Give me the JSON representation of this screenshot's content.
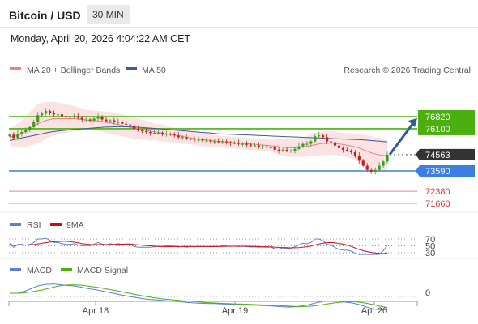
{
  "header": {
    "symbol": "Bitcoin / USD",
    "interval": "30 MIN",
    "datetime": "Monday, April 20, 2026 4:04:22 AM CET"
  },
  "legend": {
    "ma20_label": "MA 20 + Bollinger Bands",
    "ma50_label": "MA 50",
    "copyright": "Research © 2026 Trading Central",
    "ma20_color": "#f08080",
    "ma50_color": "#3d5a99"
  },
  "levels": {
    "resistance": [
      {
        "value": "76820",
        "color": "#4caf10"
      },
      {
        "value": "76100",
        "color": "#4caf10"
      }
    ],
    "current": {
      "value": "74563",
      "color": "#333333"
    },
    "pivot": {
      "value": "73590",
      "color": "#3d7fe0"
    },
    "support": [
      {
        "value": "72380",
        "color": "#e0303a"
      },
      {
        "value": "71660",
        "color": "#e0303a"
      }
    ]
  },
  "rsi": {
    "label": "RSI",
    "ma_label": "9MA",
    "rsi_color": "#5b7fd8",
    "ma_color": "#d01010",
    "levels": [
      "70",
      "50",
      "30"
    ]
  },
  "macd": {
    "label": "MACD",
    "signal_label": "MACD Signal",
    "macd_color": "#5b7fd8",
    "signal_color": "#4caf10",
    "zero_label": "0"
  },
  "xaxis": {
    "labels": [
      "Apr 18",
      "Apr 19",
      "Apr 20"
    ]
  },
  "chart_data": {
    "type": "candlestick",
    "title": "Bitcoin / USD",
    "interval": "30 MIN",
    "y_range": [
      71300,
      78000
    ],
    "x_labels": [
      "Apr 18",
      "Apr 19",
      "Apr 20"
    ],
    "close": [
      75750,
      75550,
      75800,
      75900,
      76000,
      76200,
      76500,
      76900,
      77000,
      77150,
      77050,
      76950,
      76950,
      76850,
      76800,
      76800,
      76850,
      76750,
      76650,
      76650,
      76600,
      76700,
      76800,
      76650,
      76550,
      76600,
      76500,
      76500,
      76400,
      76350,
      76300,
      76100,
      76000,
      75950,
      75900,
      75850,
      75850,
      75850,
      75800,
      75800,
      75750,
      75700,
      75600,
      75600,
      75500,
      75500,
      75450,
      75450,
      75400,
      75400,
      75350,
      75350,
      75300,
      75350,
      75300,
      75250,
      75250,
      75200,
      75200,
      75150,
      75100,
      75100,
      75050,
      75050,
      75000,
      75000,
      74850,
      74800,
      74850,
      74800,
      74800,
      74900,
      75050,
      75200,
      75200,
      75350,
      75650,
      75700,
      75600,
      75350,
      75300,
      75100,
      74950,
      74850,
      74800,
      74700,
      74500,
      74200,
      73900,
      73650,
      73550,
      73650,
      73900,
      74150,
      74563
    ],
    "ma20": [
      75600,
      75650,
      75700,
      75800,
      75950,
      76100,
      76250,
      76400,
      76500,
      76600,
      76650,
      76700,
      76700,
      76700,
      76700,
      76700,
      76700,
      76680,
      76650,
      76620,
      76600,
      76580,
      76560,
      76520,
      76480,
      76450,
      76400,
      76350,
      76300,
      76250,
      76200,
      76150,
      76100,
      76050,
      76000,
      75950,
      75920,
      75880,
      75840,
      75800,
      75760,
      75720,
      75680,
      75640,
      75600,
      75560,
      75520,
      75490,
      75460,
      75430,
      75400,
      75380,
      75350,
      75330,
      75310,
      75290,
      75270,
      75250,
      75230,
      75210,
      75190,
      75170,
      75150,
      75130,
      75110,
      75090,
      75060,
      75030,
      75000,
      74980,
      74970,
      74970,
      74990,
      75020,
      75050,
      75100,
      75150,
      75200,
      75230,
      75240,
      75240,
      75230,
      75200,
      75160,
      75120,
      75080,
      75020,
      74950,
      74860,
      74760,
      74670,
      74600,
      74550,
      74520,
      74500
    ],
    "ma50": [
      75400,
      75450,
      75500,
      75550,
      75600,
      75650,
      75700,
      75750,
      75800,
      75850,
      75900,
      75930,
      75960,
      75990,
      76010,
      76030,
      76050,
      76070,
      76090,
      76110,
      76130,
      76150,
      76170,
      76190,
      76200,
      76210,
      76215,
      76220,
      76220,
      76215,
      76210,
      76200,
      76190,
      76175,
      76160,
      76140,
      76120,
      76100,
      76080,
      76060,
      76040,
      76020,
      76000,
      75980,
      75960,
      75940,
      75920,
      75900,
      75880,
      75860,
      75840,
      75820,
      75800,
      75790,
      75780,
      75770,
      75760,
      75750,
      75740,
      75730,
      75720,
      75710,
      75700,
      75690,
      75680,
      75670,
      75660,
      75650,
      75640,
      75630,
      75620,
      75610,
      75600,
      75590,
      75580,
      75570,
      75560,
      75550,
      75540,
      75530,
      75520,
      75510,
      75500,
      75490,
      75480,
      75470,
      75460,
      75450,
      75440,
      75420,
      75400,
      75380,
      75360,
      75340,
      75320
    ],
    "bb_band_width": [
      500,
      600,
      700,
      800,
      900,
      1000,
      1100,
      1150,
      1150,
      1100,
      1050,
      1000,
      950,
      900,
      850,
      800,
      750,
      700,
      650,
      600,
      600,
      600,
      600,
      600,
      650,
      650,
      650,
      650,
      650,
      650,
      650,
      650,
      600,
      600,
      550,
      550,
      500,
      500,
      500,
      450,
      450,
      450,
      450,
      450,
      400,
      400,
      400,
      400,
      400,
      400,
      350,
      350,
      350,
      350,
      350,
      350,
      350,
      350,
      350,
      350,
      350,
      350,
      350,
      350,
      350,
      350,
      400,
      450,
      500,
      550,
      550,
      550,
      550,
      600,
      600,
      650,
      700,
      700,
      700,
      700,
      700,
      700,
      700,
      700,
      700,
      750,
      800,
      850,
      900,
      950,
      1000,
      1000,
      1000,
      950,
      900
    ],
    "projection": {
      "from": 74563,
      "to": 76820,
      "direction": "up"
    },
    "rsi": {
      "levels": [
        70,
        50,
        30
      ]
    },
    "macd": {
      "zero_line": 0
    }
  }
}
